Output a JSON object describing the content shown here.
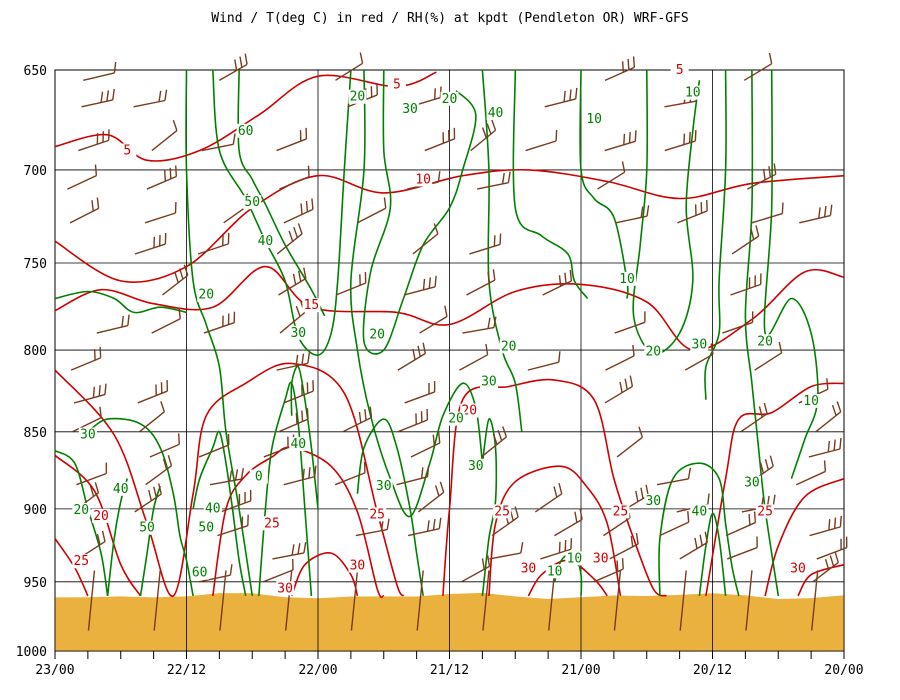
{
  "chart_data": {
    "type": "line",
    "title": "Wind / T(deg C) in red / RH(%) at kpdt (Pendleton OR)  WRF-GFS",
    "colors": {
      "temperature": "#d00000",
      "rh": "#008000",
      "wind": "#7a3b1e",
      "ground": "#ebb13f",
      "grid": "#000000"
    },
    "x_ticks": [
      "23/00",
      "22/12",
      "22/00",
      "21/12",
      "21/00",
      "20/12",
      "20/00"
    ],
    "y_ticks": [
      650,
      700,
      750,
      800,
      850,
      900,
      950,
      1000
    ],
    "ylim": [
      650,
      1000
    ],
    "y_scale": "log-pressure",
    "grid": true,
    "ground_level_hpa": 960,
    "temperature_labels": [
      {
        "text": "5",
        "x": 5.2,
        "p": 658
      },
      {
        "text": "5",
        "x": 1.1,
        "p": 691
      },
      {
        "text": "5",
        "x": 9.5,
        "p": 651
      },
      {
        "text": "10",
        "x": 5.6,
        "p": 706
      },
      {
        "text": "15",
        "x": 3.9,
        "p": 775
      },
      {
        "text": "20",
        "x": 6.3,
        "p": 838
      },
      {
        "text": "25",
        "x": 0.4,
        "p": 937
      },
      {
        "text": "20",
        "x": 0.7,
        "p": 906
      },
      {
        "text": "25",
        "x": 3.3,
        "p": 911
      },
      {
        "text": "30",
        "x": 3.5,
        "p": 956
      },
      {
        "text": "25",
        "x": 4.9,
        "p": 905
      },
      {
        "text": "30",
        "x": 4.6,
        "p": 940
      },
      {
        "text": "25",
        "x": 6.8,
        "p": 903
      },
      {
        "text": "30",
        "x": 7.2,
        "p": 942
      },
      {
        "text": "30",
        "x": 8.3,
        "p": 935
      },
      {
        "text": "25",
        "x": 8.6,
        "p": 903
      },
      {
        "text": "25",
        "x": 10.8,
        "p": 903
      },
      {
        "text": "30",
        "x": 11.3,
        "p": 942
      }
    ],
    "rh_labels": [
      {
        "text": "60",
        "x": 2.9,
        "p": 681
      },
      {
        "text": "50",
        "x": 3.0,
        "p": 718
      },
      {
        "text": "40",
        "x": 3.2,
        "p": 739
      },
      {
        "text": "20",
        "x": 4.6,
        "p": 664
      },
      {
        "text": "30",
        "x": 5.4,
        "p": 670
      },
      {
        "text": "20",
        "x": 6.0,
        "p": 665
      },
      {
        "text": "40",
        "x": 6.7,
        "p": 672
      },
      {
        "text": "10",
        "x": 8.2,
        "p": 675
      },
      {
        "text": "10",
        "x": 9.7,
        "p": 662
      },
      {
        "text": "20",
        "x": 2.3,
        "p": 769
      },
      {
        "text": "30",
        "x": 3.7,
        "p": 791
      },
      {
        "text": "20",
        "x": 4.9,
        "p": 792
      },
      {
        "text": "10",
        "x": 8.7,
        "p": 760
      },
      {
        "text": "20",
        "x": 6.9,
        "p": 799
      },
      {
        "text": "30",
        "x": 6.6,
        "p": 820
      },
      {
        "text": "20",
        "x": 9.1,
        "p": 802
      },
      {
        "text": "30",
        "x": 9.8,
        "p": 798
      },
      {
        "text": "20",
        "x": 10.8,
        "p": 796
      },
      {
        "text": "10",
        "x": 11.5,
        "p": 832
      },
      {
        "text": "20",
        "x": 6.1,
        "p": 843
      },
      {
        "text": "30",
        "x": 6.4,
        "p": 873
      },
      {
        "text": "30",
        "x": 0.5,
        "p": 853
      },
      {
        "text": "40",
        "x": 1.0,
        "p": 888
      },
      {
        "text": "20",
        "x": 0.4,
        "p": 902
      },
      {
        "text": "50",
        "x": 1.4,
        "p": 914
      },
      {
        "text": "40",
        "x": 2.4,
        "p": 901
      },
      {
        "text": "50",
        "x": 2.3,
        "p": 914
      },
      {
        "text": "60",
        "x": 2.2,
        "p": 945
      },
      {
        "text": "0",
        "x": 3.1,
        "p": 880
      },
      {
        "text": "30",
        "x": 5.0,
        "p": 886
      },
      {
        "text": "30",
        "x": 9.1,
        "p": 896
      },
      {
        "text": "40",
        "x": 9.8,
        "p": 903
      },
      {
        "text": "30",
        "x": 10.6,
        "p": 884
      },
      {
        "text": "10",
        "x": 7.6,
        "p": 944
      },
      {
        "text": "10",
        "x": 7.9,
        "p": 935
      },
      {
        "text": "40",
        "x": 3.7,
        "p": 859
      }
    ]
  }
}
